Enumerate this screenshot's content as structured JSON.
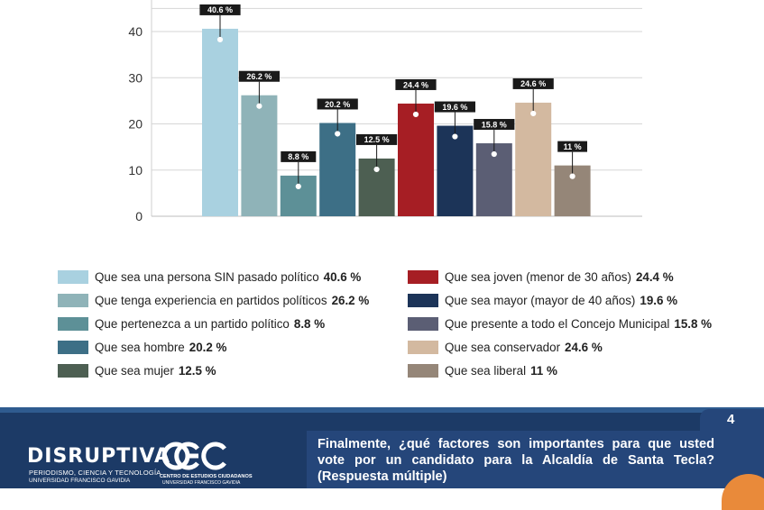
{
  "chart_data": {
    "type": "bar",
    "ylim": [
      0,
      45
    ],
    "yticks": [
      0,
      10,
      20,
      30,
      40
    ],
    "grid": true,
    "series": [
      {
        "label": "Que sea una persona SIN pasado político",
        "value_label": "40.6 %",
        "value": 40.6,
        "color": "#a9d1e0"
      },
      {
        "label": "Que tenga experiencia en partidos políticos",
        "value_label": "26.2 %",
        "value": 26.2,
        "color": "#8fb3b8"
      },
      {
        "label": "Que pertenezca a un partido político",
        "value_label": "8.8 %",
        "value": 8.8,
        "color": "#5d9097"
      },
      {
        "label": "Que sea hombre",
        "value_label": "20.2 %",
        "value": 20.2,
        "color": "#3d6f86"
      },
      {
        "label": "Que sea mujer",
        "value_label": "12.5 %",
        "value": 12.5,
        "color": "#4d5f52"
      },
      {
        "label": "Que sea joven (menor de 30 años)",
        "value_label": "24.4 %",
        "value": 24.4,
        "color": "#a61e24"
      },
      {
        "label": "Que sea mayor (mayor de 40 años)",
        "value_label": "19.6 %",
        "value": 19.6,
        "color": "#1c3458"
      },
      {
        "label": "Que presente a todo el Concejo Municipal",
        "value_label": "15.8 %",
        "value": 15.8,
        "color": "#5b5e74"
      },
      {
        "label": "Que sea conservador",
        "value_label": "24.6 %",
        "value": 24.6,
        "color": "#d3b9a0"
      },
      {
        "label": "Que sea liberal",
        "value_label": "11 %",
        "value": 11,
        "color": "#958678"
      }
    ]
  },
  "legend": {
    "left": [
      {
        "text": "Que sea una persona SIN pasado político",
        "value": "40.6 %",
        "color": "#a9d1e0"
      },
      {
        "text": "Que tenga experiencia en partidos políticos",
        "value": "26.2 %",
        "color": "#8fb3b8"
      },
      {
        "text": "Que pertenezca a un partido político",
        "value": "8.8 %",
        "color": "#5d9097"
      },
      {
        "text": "Que sea hombre",
        "value": "20.2 %",
        "color": "#3d6f86"
      },
      {
        "text": "Que sea mujer",
        "value": "12.5 %",
        "color": "#4d5f52"
      }
    ],
    "right": [
      {
        "text": "Que sea joven (menor de 30 años)",
        "value": "24.4 %",
        "color": "#a61e24"
      },
      {
        "text": "Que sea mayor (mayor de 40 años)",
        "value": "19.6 %",
        "color": "#1c3458"
      },
      {
        "text": "Que presente a todo el Concejo Municipal",
        "value": "15.8 %",
        "color": "#5b5e74"
      },
      {
        "text": "Que sea conservador",
        "value": "24.6 %",
        "color": "#d3b9a0"
      },
      {
        "text": "Que sea liberal",
        "value": "11 %",
        "color": "#958678"
      }
    ]
  },
  "footer": {
    "page_number": "4",
    "brand": "DISRUPTIVA",
    "brand_sub1": "PERIODISMO, CIENCIA Y TECNOLOGÍA",
    "brand_sub2": "UNIVERSIDAD FRANCISCO GAVIDIA",
    "cec_sub1": "CENTRO DE ESTUDIOS CIUDADANOS",
    "cec_sub2": "UNIVERSIDAD FRANCISCO GAVIDIA",
    "question": "Finalmente, ¿qué factores son importantes para que usted vote por un candidato para la Alcaldía de Santa Tecla? (Respuesta múltiple)",
    "colors": {
      "dark_blue": "#1c3a66",
      "mid_blue": "#25467a",
      "accent": "#e98a3a"
    }
  }
}
